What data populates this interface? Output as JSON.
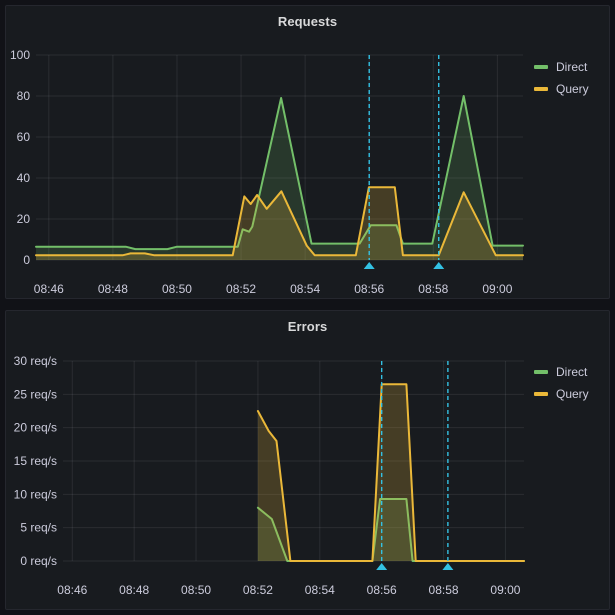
{
  "colors": {
    "page_bg": "#111217",
    "panel_bg": "#181b1f",
    "panel_border": "#25272e",
    "grid": "rgba(204,204,220,0.10)",
    "tick_text": "#ccccdc",
    "title_text": "#d8d9da",
    "annotation": "#33c1e3",
    "series_direct": "#73bf69",
    "series_query": "#eab839"
  },
  "chart_data": [
    {
      "type": "line",
      "title": "Requests",
      "x_unit": "minutes after 08:46",
      "x_tick_labels": [
        "08:46",
        "08:48",
        "08:50",
        "08:52",
        "08:54",
        "08:56",
        "08:58",
        "09:00"
      ],
      "x_tick_minutes": [
        0,
        2,
        4,
        6,
        8,
        10,
        12,
        14
      ],
      "xlim_minutes": [
        -0.4,
        14.8
      ],
      "y_tick_values": [
        0,
        20,
        40,
        60,
        80,
        100
      ],
      "y_tick_labels": [
        "0",
        "20",
        "40",
        "60",
        "80",
        "100"
      ],
      "ylim": [
        0,
        100
      ],
      "grid": true,
      "legend_position": "right-top",
      "annotations": {
        "color": "#33c1e3",
        "style": "dashed-vertical",
        "times_minutes": [
          10,
          12.17
        ]
      },
      "series": [
        {
          "name": "Direct",
          "color": "#73bf69",
          "fill_opacity": 0.18,
          "points": [
            [
              -0.4,
              6.5
            ],
            [
              1.0,
              6.5
            ],
            [
              2.4,
              6.5
            ],
            [
              2.7,
              5.3
            ],
            [
              3.7,
              5.3
            ],
            [
              4.0,
              6.5
            ],
            [
              5.9,
              6.5
            ],
            [
              6.05,
              15
            ],
            [
              6.25,
              13.8
            ],
            [
              6.35,
              16.3
            ],
            [
              7.25,
              79
            ],
            [
              8.2,
              8
            ],
            [
              9.7,
              8
            ],
            [
              10.05,
              17
            ],
            [
              10.85,
              17
            ],
            [
              11.05,
              8
            ],
            [
              11.97,
              8
            ],
            [
              12.95,
              80
            ],
            [
              13.85,
              7
            ],
            [
              14.8,
              7
            ]
          ]
        },
        {
          "name": "Query",
          "color": "#eab839",
          "fill_opacity": 0.22,
          "points": [
            [
              -0.4,
              2.3
            ],
            [
              2.3,
              2.3
            ],
            [
              2.55,
              3.2
            ],
            [
              3.0,
              3.2
            ],
            [
              3.3,
              2.3
            ],
            [
              5.74,
              2.3
            ],
            [
              6.1,
              31
            ],
            [
              6.3,
              27.3
            ],
            [
              6.5,
              31.7
            ],
            [
              6.8,
              25
            ],
            [
              7.26,
              33.5
            ],
            [
              8.05,
              7
            ],
            [
              8.3,
              2.3
            ],
            [
              9.58,
              2.3
            ],
            [
              9.99,
              35.5
            ],
            [
              10.8,
              35.5
            ],
            [
              11.05,
              2.3
            ],
            [
              12.17,
              2.3
            ],
            [
              12.95,
              33
            ],
            [
              13.95,
              2.3
            ],
            [
              14.8,
              2.3
            ]
          ]
        }
      ]
    },
    {
      "type": "line",
      "title": "Errors",
      "x_unit": "minutes after 08:46",
      "y_unit": "req/s",
      "x_tick_labels": [
        "08:46",
        "08:48",
        "08:50",
        "08:52",
        "08:54",
        "08:56",
        "08:58",
        "09:00"
      ],
      "x_tick_minutes": [
        0,
        2,
        4,
        6,
        8,
        10,
        12,
        14
      ],
      "xlim_minutes": [
        -0.3,
        14.6
      ],
      "y_tick_values": [
        0,
        5,
        10,
        15,
        20,
        25,
        30
      ],
      "y_tick_labels": [
        "0 req/s",
        "5 req/s",
        "10 req/s",
        "15 req/s",
        "20 req/s",
        "25 req/s",
        "30 req/s"
      ],
      "ylim": [
        0,
        30
      ],
      "grid": true,
      "legend_position": "right-top",
      "annotations": {
        "color": "#33c1e3",
        "style": "dashed-vertical",
        "times_minutes": [
          10,
          12.14
        ]
      },
      "series": [
        {
          "name": "Direct",
          "color": "#73bf69",
          "fill_opacity": 0.18,
          "points": [
            [
              6.0,
              8.0
            ],
            [
              6.45,
              6.3
            ],
            [
              6.95,
              0
            ],
            [
              9.7,
              0
            ],
            [
              9.95,
              9.3
            ],
            [
              10.8,
              9.3
            ],
            [
              11.0,
              0
            ],
            [
              14.6,
              0
            ]
          ]
        },
        {
          "name": "Query",
          "color": "#eab839",
          "fill_opacity": 0.22,
          "points": [
            [
              6.0,
              22.5
            ],
            [
              6.35,
              19.5
            ],
            [
              6.6,
              18
            ],
            [
              7.05,
              0
            ],
            [
              9.7,
              0
            ],
            [
              10.0,
              26.5
            ],
            [
              10.8,
              26.5
            ],
            [
              11.1,
              0
            ],
            [
              14.6,
              0
            ]
          ]
        }
      ]
    }
  ]
}
